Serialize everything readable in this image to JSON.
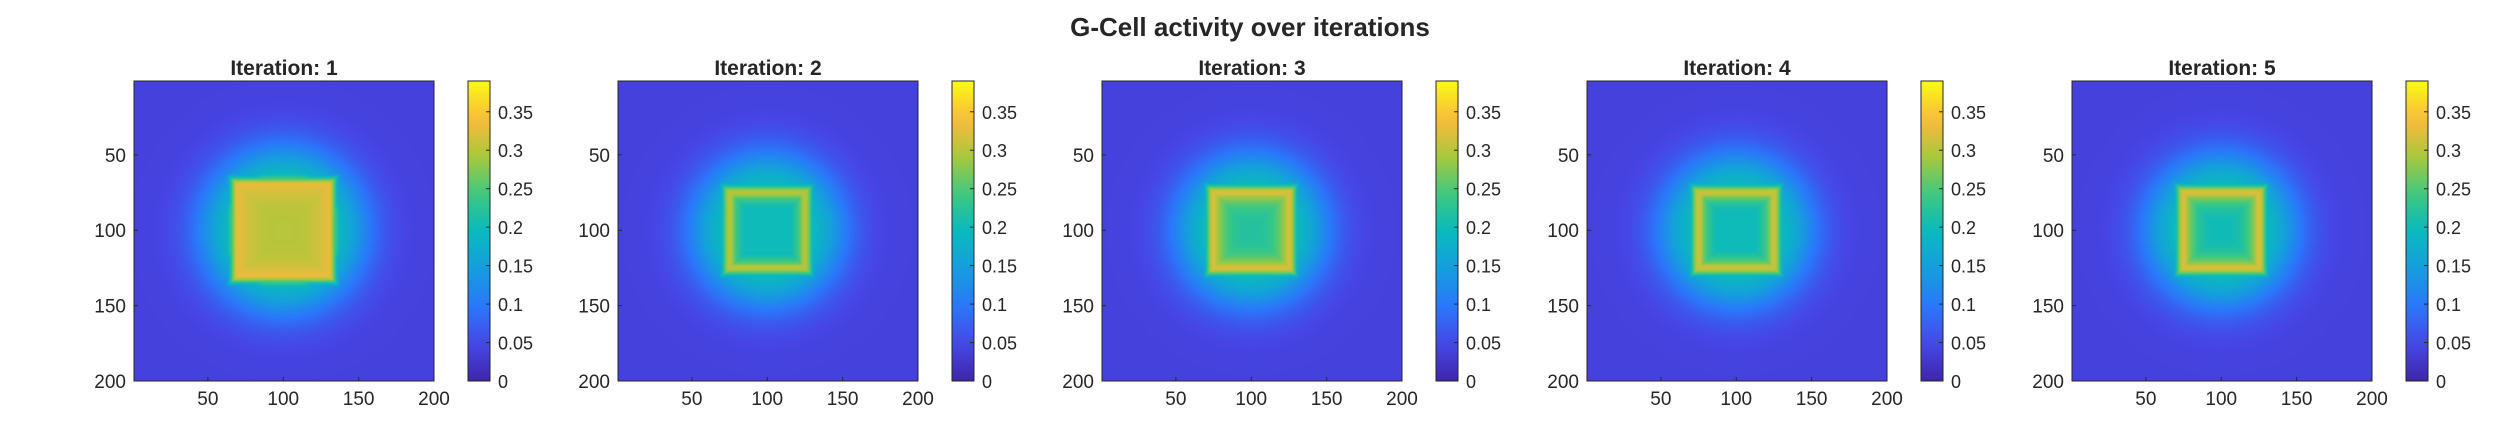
{
  "figure": {
    "title": "G-Cell activity over iterations"
  },
  "chart_data": {
    "type": "heatmap",
    "title": "G-Cell activity over iterations",
    "grid_size": [
      200,
      200
    ],
    "x_range": [
      1,
      200
    ],
    "y_range": [
      1,
      200
    ],
    "y_direction": "reversed",
    "x_ticks": [
      50,
      100,
      150,
      200
    ],
    "y_ticks": [
      50,
      100,
      150,
      200
    ],
    "colormap": "parula",
    "colorbar": {
      "range": [
        0,
        0.39
      ],
      "ticks": [
        0,
        0.05,
        0.1,
        0.15,
        0.2,
        0.25,
        0.3,
        0.35
      ],
      "tick_labels": [
        "0",
        "0.05",
        "0.1",
        "0.15",
        "0.2",
        "0.25",
        "0.3",
        "0.35"
      ]
    },
    "panels": [
      {
        "title": "Iteration: 1",
        "center": [
          100,
          100
        ],
        "background": 0.04,
        "ring_peak": 0.33,
        "center_value": 0.3,
        "plus_arm_value": 0.28,
        "square_half_width": 30,
        "lobe_half_width": 12
      },
      {
        "title": "Iteration: 2",
        "center": [
          100,
          100
        ],
        "background": 0.04,
        "ring_peak": 0.3,
        "center_value": 0.17,
        "plus_arm_value": 0.2,
        "square_half_width": 25,
        "lobe_half_width": 8
      },
      {
        "title": "Iteration: 3",
        "center": [
          100,
          100
        ],
        "background": 0.04,
        "ring_peak": 0.32,
        "center_value": 0.22,
        "plus_arm_value": 0.22,
        "square_half_width": 25,
        "lobe_half_width": 8
      },
      {
        "title": "Iteration: 4",
        "center": [
          100,
          100
        ],
        "background": 0.04,
        "ring_peak": 0.31,
        "center_value": 0.18,
        "plus_arm_value": 0.21,
        "square_half_width": 25,
        "lobe_half_width": 8
      },
      {
        "title": "Iteration: 5",
        "center": [
          100,
          100
        ],
        "background": 0.04,
        "ring_peak": 0.32,
        "center_value": 0.2,
        "plus_arm_value": 0.21,
        "square_half_width": 25,
        "lobe_half_width": 8
      }
    ]
  }
}
